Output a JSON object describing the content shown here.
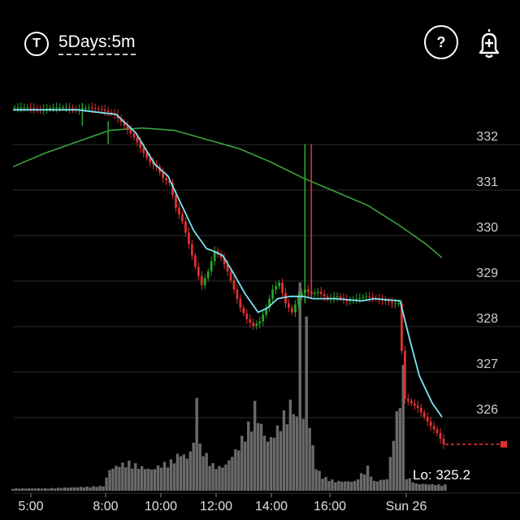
{
  "header": {
    "timeframe_icon": "T",
    "timeframe_label": "5Days:5m",
    "help_label": "?",
    "alert_icon": "bell-plus-icon"
  },
  "chart_data": {
    "type": "candlestick",
    "price_labels": [
      "332",
      "331",
      "330",
      "329",
      "328",
      "327",
      "326"
    ],
    "price_ticks": [
      332,
      331,
      330,
      329,
      328,
      327,
      326
    ],
    "ylim": [
      324.6,
      333.4
    ],
    "time_labels": [
      "5:00",
      "8:00",
      "10:00",
      "12:00",
      "14:00",
      "16:00",
      "Sun 26"
    ],
    "low_label": "Lo: 325.2",
    "low_value": 325.2,
    "colors": {
      "up": "#2aa52a",
      "down": "#e03030",
      "fast_ma": "#7fe3f2",
      "slow_ma": "#3aa43a",
      "volume": "#6a6a6a",
      "grid": "#2c2c2c"
    },
    "price_path": [
      [
        0,
        332.6
      ],
      [
        5,
        332.6
      ],
      [
        9,
        332.55
      ],
      [
        13,
        332.6
      ],
      [
        17,
        332.6
      ],
      [
        20,
        332.55
      ],
      [
        24,
        332.6
      ],
      [
        28,
        332.55
      ],
      [
        32,
        332.45
      ],
      [
        35,
        332.2
      ],
      [
        38,
        331.95
      ],
      [
        41,
        331.6
      ],
      [
        43,
        331.4
      ],
      [
        45,
        331.3
      ],
      [
        47,
        331.05
      ],
      [
        49,
        330.95
      ],
      [
        51,
        330.4
      ],
      [
        53,
        330.1
      ],
      [
        55,
        329.6
      ],
      [
        57,
        329.1
      ],
      [
        59,
        328.7
      ],
      [
        61,
        329.0
      ],
      [
        63,
        329.45
      ],
      [
        65,
        329.3
      ],
      [
        67,
        329.0
      ],
      [
        69,
        328.6
      ],
      [
        71,
        328.2
      ],
      [
        73,
        327.95
      ],
      [
        75,
        327.8
      ],
      [
        77,
        327.9
      ],
      [
        79,
        328.2
      ],
      [
        81,
        328.6
      ],
      [
        83,
        328.75
      ],
      [
        85,
        328.3
      ],
      [
        87,
        328.1
      ],
      [
        89,
        328.45
      ],
      [
        91,
        328.6
      ],
      [
        93,
        328.5
      ],
      [
        95,
        328.55
      ],
      [
        98,
        328.4
      ],
      [
        101,
        328.45
      ],
      [
        104,
        328.35
      ],
      [
        107,
        328.4
      ],
      [
        110,
        328.45
      ],
      [
        113,
        328.4
      ],
      [
        116,
        328.35
      ],
      [
        118,
        328.3
      ],
      [
        120,
        328.3
      ],
      [
        122,
        326.2
      ],
      [
        124,
        326.1
      ],
      [
        126,
        326.0
      ],
      [
        128,
        325.8
      ],
      [
        130,
        325.6
      ],
      [
        132,
        325.45
      ],
      [
        134,
        325.2
      ]
    ],
    "spikes": [
      {
        "i": 21,
        "high": 332.7,
        "low": 332.2,
        "dir": "up"
      },
      {
        "i": 29,
        "high": 332.3,
        "low": 331.8,
        "dir": "up"
      },
      {
        "i": 90,
        "high": 331.8,
        "low": 328.3,
        "dir": "up"
      },
      {
        "i": 92,
        "high": 331.8,
        "low": 328.4,
        "dir": "down"
      }
    ],
    "fast_ma": [
      [
        0,
        332.55
      ],
      [
        20,
        332.55
      ],
      [
        32,
        332.45
      ],
      [
        38,
        332.05
      ],
      [
        44,
        331.35
      ],
      [
        48,
        331.1
      ],
      [
        52,
        330.5
      ],
      [
        56,
        329.9
      ],
      [
        60,
        329.5
      ],
      [
        62,
        329.45
      ],
      [
        65,
        329.35
      ],
      [
        68,
        329.0
      ],
      [
        72,
        328.5
      ],
      [
        76,
        328.1
      ],
      [
        79,
        328.2
      ],
      [
        82,
        328.4
      ],
      [
        86,
        328.45
      ],
      [
        90,
        328.45
      ],
      [
        93,
        328.4
      ],
      [
        100,
        328.4
      ],
      [
        108,
        328.35
      ],
      [
        112,
        328.4
      ],
      [
        120,
        328.35
      ],
      [
        123,
        327.5
      ],
      [
        126,
        326.7
      ],
      [
        130,
        326.1
      ],
      [
        133,
        325.8
      ]
    ],
    "slow_ma": [
      [
        0,
        331.3
      ],
      [
        10,
        331.6
      ],
      [
        20,
        331.85
      ],
      [
        30,
        332.1
      ],
      [
        40,
        332.15
      ],
      [
        50,
        332.1
      ],
      [
        60,
        331.9
      ],
      [
        70,
        331.7
      ],
      [
        80,
        331.4
      ],
      [
        90,
        331.05
      ],
      [
        100,
        330.75
      ],
      [
        110,
        330.45
      ],
      [
        120,
        330.0
      ],
      [
        128,
        329.6
      ],
      [
        133,
        329.3
      ]
    ],
    "volume": [
      [
        0,
        2
      ],
      [
        10,
        2
      ],
      [
        20,
        3
      ],
      [
        28,
        4
      ],
      [
        30,
        18
      ],
      [
        33,
        22
      ],
      [
        36,
        24
      ],
      [
        40,
        20
      ],
      [
        43,
        18
      ],
      [
        46,
        22
      ],
      [
        49,
        25
      ],
      [
        52,
        32
      ],
      [
        54,
        28
      ],
      [
        56,
        40
      ],
      [
        57,
        85
      ],
      [
        58,
        38
      ],
      [
        60,
        30
      ],
      [
        62,
        22
      ],
      [
        64,
        20
      ],
      [
        66,
        22
      ],
      [
        68,
        30
      ],
      [
        70,
        38
      ],
      [
        72,
        50
      ],
      [
        74,
        60
      ],
      [
        75,
        72
      ],
      [
        77,
        55
      ],
      [
        79,
        42
      ],
      [
        81,
        48
      ],
      [
        83,
        58
      ],
      [
        85,
        70
      ],
      [
        87,
        75
      ],
      [
        88,
        60
      ],
      [
        89,
        190
      ],
      [
        90,
        60
      ],
      [
        91,
        150
      ],
      [
        92,
        55
      ],
      [
        94,
        20
      ],
      [
        96,
        12
      ],
      [
        100,
        8
      ],
      [
        106,
        8
      ],
      [
        110,
        20
      ],
      [
        112,
        8
      ],
      [
        116,
        10
      ],
      [
        121,
        100
      ],
      [
        122,
        12
      ],
      [
        125,
        6
      ],
      [
        134,
        5
      ]
    ]
  }
}
